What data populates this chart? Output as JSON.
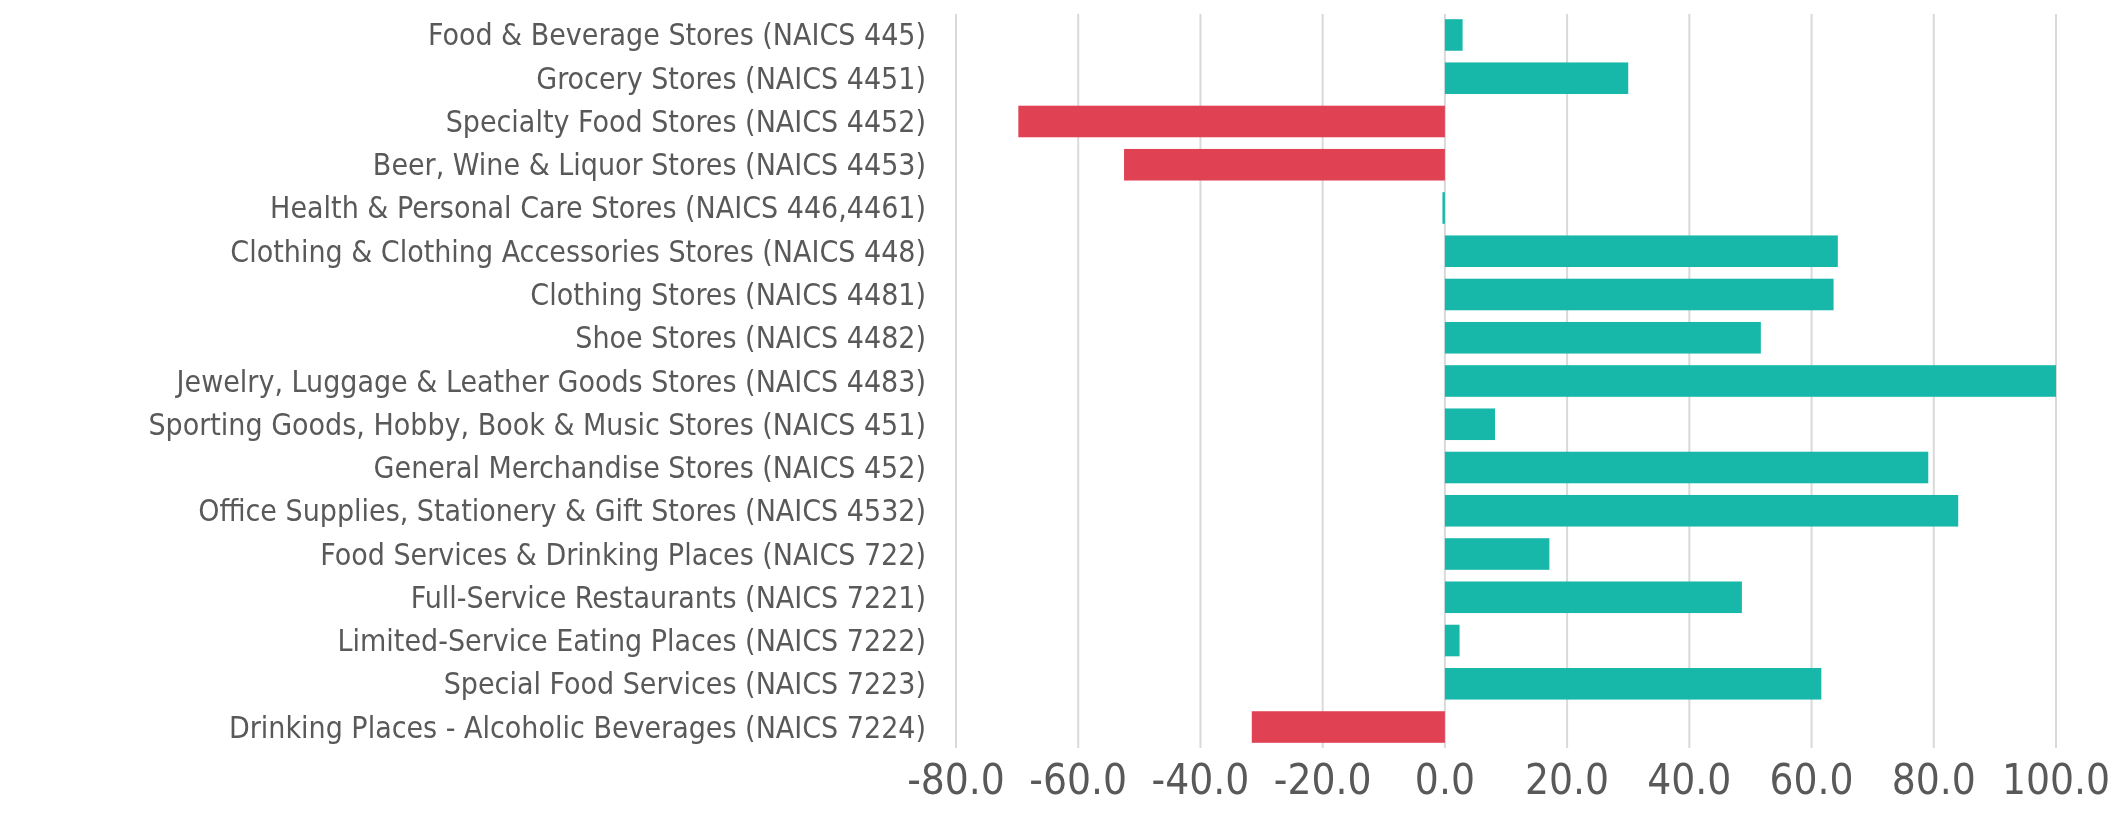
{
  "chart_data": {
    "type": "bar",
    "orientation": "horizontal",
    "categories": [
      "Food & Beverage Stores (NAICS 445)",
      "Grocery Stores (NAICS 4451)",
      "Specialty Food Stores (NAICS 4452)",
      "Beer, Wine & Liquor Stores (NAICS 4453)",
      "Health & Personal Care Stores (NAICS 446,4461)",
      "Clothing & Clothing Accessories Stores (NAICS 448)",
      "Clothing Stores (NAICS 4481)",
      "Shoe Stores (NAICS 4482)",
      "Jewelry, Luggage & Leather Goods Stores (NAICS 4483)",
      "Sporting Goods, Hobby, Book & Music Stores (NAICS 451)",
      "General Merchandise Stores (NAICS 452)",
      "Office Supplies, Stationery & Gift Stores (NAICS 4532)",
      "Food Services & Drinking Places (NAICS 722)",
      "Full-Service Restaurants (NAICS 7221)",
      "Limited-Service Eating Places (NAICS 7222)",
      "Special Food Services (NAICS 7223)",
      "Drinking Places - Alcoholic Beverages  (NAICS 7224)"
    ],
    "values": [
      2.9,
      30.0,
      -69.8,
      -52.5,
      -0.4,
      64.3,
      63.6,
      51.7,
      100.0,
      8.2,
      79.1,
      84.0,
      17.1,
      48.6,
      2.4,
      61.6,
      -31.6
    ],
    "colors": [
      "#17b8aa",
      "#17b8aa",
      "#e04253",
      "#e04253",
      "#17b8aa",
      "#17b8aa",
      "#17b8aa",
      "#17b8aa",
      "#17b8aa",
      "#17b8aa",
      "#17b8aa",
      "#17b8aa",
      "#17b8aa",
      "#17b8aa",
      "#17b8aa",
      "#17b8aa",
      "#e04253"
    ],
    "xlim": [
      -80,
      100
    ],
    "xticks": [
      {
        "value": -80,
        "label": "-80.0"
      },
      {
        "value": -60,
        "label": "-60.0"
      },
      {
        "value": -40,
        "label": "-40.0"
      },
      {
        "value": -20,
        "label": "-20.0"
      },
      {
        "value": 0,
        "label": "0.0"
      },
      {
        "value": 20,
        "label": "20.0"
      },
      {
        "value": 40,
        "label": "40.0"
      },
      {
        "value": 60,
        "label": "60.0"
      },
      {
        "value": 80,
        "label": "80.0"
      },
      {
        "value": 100,
        "label": "100.0"
      }
    ],
    "grid": "x"
  }
}
